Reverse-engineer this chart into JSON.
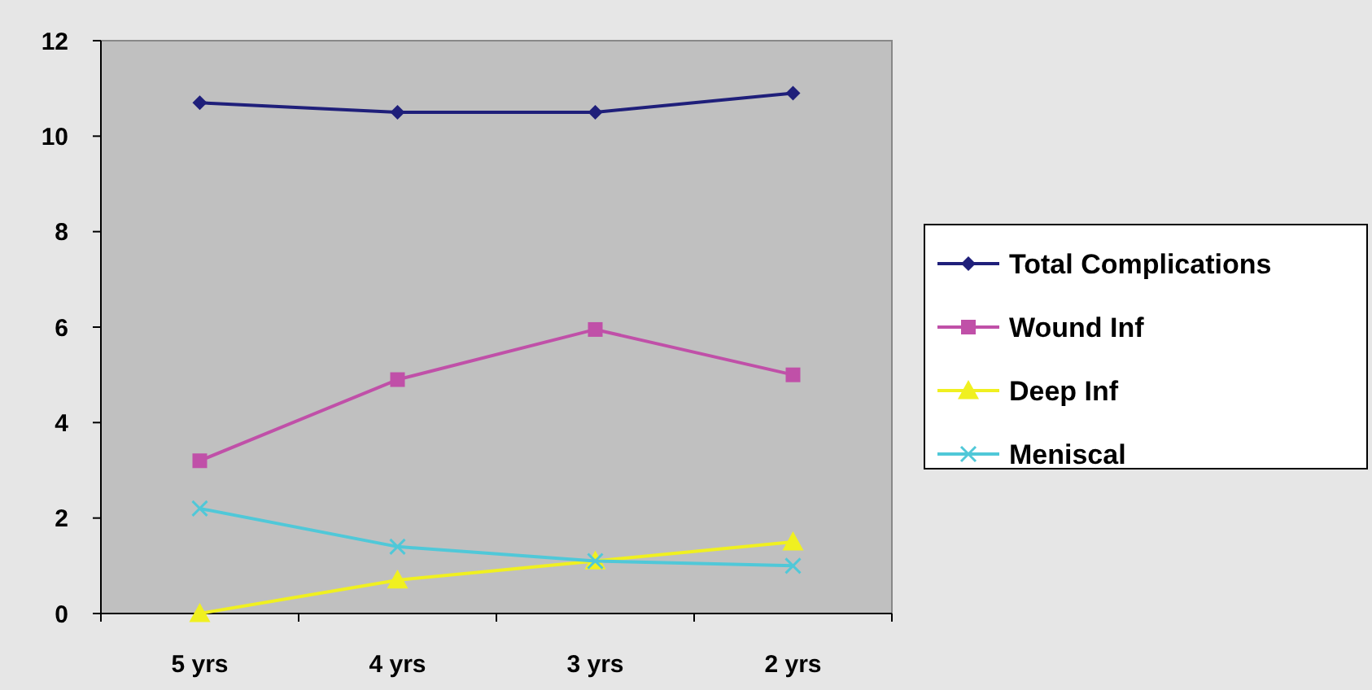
{
  "chart_data": {
    "type": "line",
    "categories": [
      "5 yrs",
      "4 yrs",
      "3 yrs",
      "2 yrs"
    ],
    "series": [
      {
        "name": "Total Complications",
        "color": "#1f1f7a",
        "marker": "diamond",
        "values": [
          10.7,
          10.5,
          10.5,
          10.9
        ]
      },
      {
        "name": "Wound Inf",
        "color": "#c050a8",
        "marker": "square",
        "values": [
          3.2,
          4.9,
          5.95,
          5.0
        ]
      },
      {
        "name": "Deep Inf",
        "color": "#f0f020",
        "marker": "triangle",
        "values": [
          0,
          0.7,
          1.1,
          1.5
        ]
      },
      {
        "name": "Meniscal",
        "color": "#50c8d8",
        "marker": "cross",
        "values": [
          2.2,
          1.4,
          1.1,
          1.0
        ]
      }
    ],
    "ylim": [
      0,
      12
    ],
    "yticks": [
      0,
      2,
      4,
      6,
      8,
      10,
      12
    ],
    "grid": false,
    "legend": "right"
  }
}
